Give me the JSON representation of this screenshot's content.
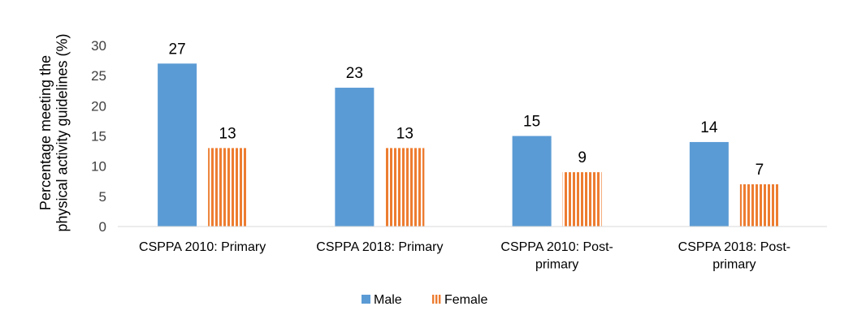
{
  "chart_data": {
    "type": "bar",
    "categories": [
      [
        "CSPPA 2010: Primary"
      ],
      [
        "CSPPA 2018: Primary"
      ],
      [
        "CSPPA 2010: Post-",
        "primary"
      ],
      [
        "CSPPA 2018: Post-",
        "primary"
      ]
    ],
    "series": [
      {
        "name": "Male",
        "values": [
          27,
          23,
          15,
          14
        ],
        "color": "#5B9BD5",
        "fill": "solid"
      },
      {
        "name": "Female",
        "values": [
          13,
          13,
          9,
          7
        ],
        "color": "#ED7D31",
        "fill": "vertical-stripes"
      }
    ],
    "ylabel": [
      "Percentage meeting the",
      "physical activity guidelines (%)"
    ],
    "xlabel": "",
    "title": "",
    "ylim": [
      0,
      30
    ],
    "yticks": [
      0,
      5,
      10,
      15,
      20,
      25,
      30
    ],
    "grid": false,
    "legend_position": "bottom"
  }
}
